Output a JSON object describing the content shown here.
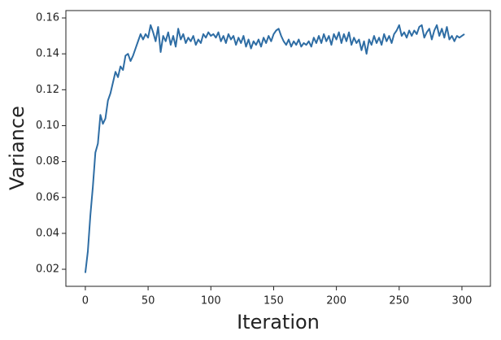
{
  "chart_data": {
    "type": "line",
    "x_label": "Iteration",
    "y_label": "Variance",
    "x": [
      0,
      2,
      4,
      6,
      8,
      10,
      12,
      14,
      16,
      18,
      20,
      22,
      24,
      26,
      28,
      30,
      32,
      34,
      36,
      38,
      40,
      42,
      44,
      46,
      48,
      50,
      52,
      54,
      56,
      58,
      60,
      62,
      64,
      66,
      68,
      70,
      72,
      74,
      76,
      78,
      80,
      82,
      84,
      86,
      88,
      90,
      92,
      94,
      96,
      98,
      100,
      102,
      104,
      106,
      108,
      110,
      112,
      114,
      116,
      118,
      120,
      122,
      124,
      126,
      128,
      130,
      132,
      134,
      136,
      138,
      140,
      142,
      144,
      146,
      148,
      150,
      152,
      154,
      156,
      158,
      160,
      162,
      164,
      166,
      168,
      170,
      172,
      174,
      176,
      178,
      180,
      182,
      184,
      186,
      188,
      190,
      192,
      194,
      196,
      198,
      200,
      202,
      204,
      206,
      208,
      210,
      212,
      214,
      216,
      218,
      220,
      222,
      224,
      226,
      228,
      230,
      232,
      234,
      236,
      238,
      240,
      242,
      244,
      246,
      248,
      250,
      252,
      254,
      256,
      258,
      260,
      262,
      264,
      266,
      268,
      270,
      272,
      274,
      276,
      278,
      280,
      282,
      284,
      286,
      288,
      290,
      292,
      294,
      296,
      298,
      300,
      302
    ],
    "series": [
      {
        "color": "#2e6da4",
        "values": [
          0.018,
          0.03,
          0.05,
          0.066,
          0.085,
          0.09,
          0.106,
          0.101,
          0.104,
          0.114,
          0.118,
          0.124,
          0.13,
          0.127,
          0.133,
          0.131,
          0.139,
          0.14,
          0.136,
          0.139,
          0.143,
          0.147,
          0.151,
          0.148,
          0.151,
          0.149,
          0.156,
          0.152,
          0.147,
          0.155,
          0.141,
          0.15,
          0.147,
          0.152,
          0.145,
          0.15,
          0.144,
          0.154,
          0.148,
          0.151,
          0.146,
          0.149,
          0.147,
          0.15,
          0.145,
          0.148,
          0.146,
          0.151,
          0.149,
          0.152,
          0.15,
          0.151,
          0.149,
          0.152,
          0.147,
          0.15,
          0.146,
          0.151,
          0.148,
          0.15,
          0.145,
          0.149,
          0.146,
          0.15,
          0.144,
          0.148,
          0.143,
          0.147,
          0.145,
          0.148,
          0.144,
          0.149,
          0.146,
          0.15,
          0.147,
          0.151,
          0.153,
          0.154,
          0.15,
          0.147,
          0.145,
          0.148,
          0.144,
          0.147,
          0.145,
          0.148,
          0.144,
          0.146,
          0.145,
          0.147,
          0.144,
          0.149,
          0.146,
          0.15,
          0.146,
          0.151,
          0.147,
          0.15,
          0.145,
          0.151,
          0.148,
          0.152,
          0.146,
          0.151,
          0.147,
          0.152,
          0.145,
          0.149,
          0.146,
          0.148,
          0.142,
          0.147,
          0.14,
          0.148,
          0.145,
          0.15,
          0.146,
          0.149,
          0.145,
          0.151,
          0.147,
          0.15,
          0.146,
          0.151,
          0.153,
          0.156,
          0.15,
          0.152,
          0.149,
          0.153,
          0.15,
          0.153,
          0.151,
          0.155,
          0.156,
          0.149,
          0.152,
          0.154,
          0.148,
          0.153,
          0.156,
          0.15,
          0.154,
          0.149,
          0.155,
          0.148,
          0.15,
          0.147,
          0.15,
          0.149,
          0.15,
          0.151
        ]
      }
    ],
    "xlim": [
      -15.5,
      322.7
    ],
    "ylim": [
      0.0105,
      0.1641
    ],
    "xticks": [
      0,
      50,
      100,
      150,
      200,
      250,
      300
    ],
    "yticks": [
      0.02,
      0.04,
      0.06,
      0.08,
      {
        "value": 0.1,
        "label": "0.10"
      },
      0.12,
      0.14,
      0.16
    ]
  }
}
